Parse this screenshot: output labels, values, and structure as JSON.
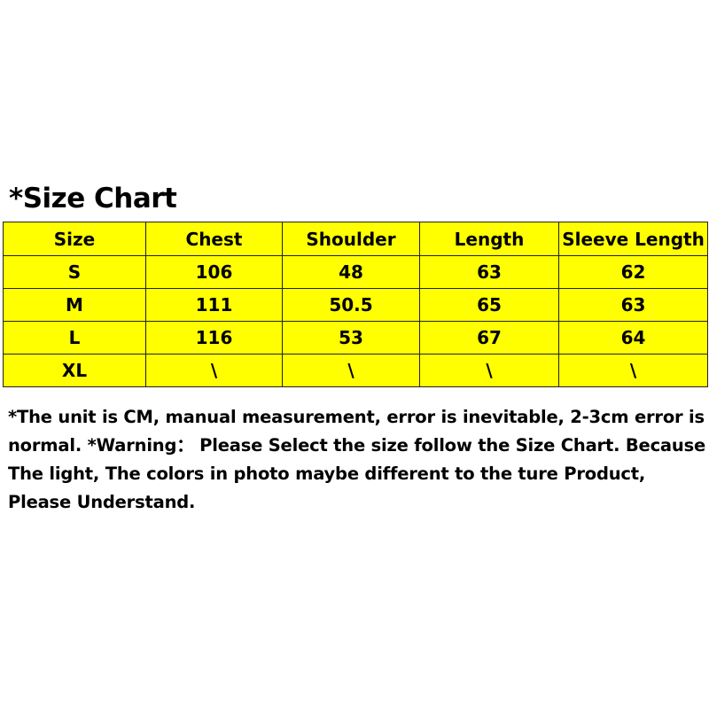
{
  "title": "*Size Chart",
  "table": {
    "headers": [
      "Size",
      "Chest",
      "Shoulder",
      "Length",
      "Sleeve Length"
    ],
    "rows": [
      [
        "S",
        "106",
        "48",
        "63",
        "62"
      ],
      [
        "M",
        "111",
        "50.5",
        "65",
        "63"
      ],
      [
        "L",
        "116",
        "53",
        "67",
        "64"
      ],
      [
        "XL",
        "\\",
        "\\",
        "\\",
        "\\"
      ]
    ]
  },
  "notes": "*The unit is CM, manual measurement, error is inevitable, 2-3cm error is normal. *Warning： Please Select the size follow the Size Chart. Because The light, The colors in photo maybe different to the ture Product, Please Understand.",
  "colors": {
    "table_fill": "#ffff00",
    "border": "#222222"
  }
}
